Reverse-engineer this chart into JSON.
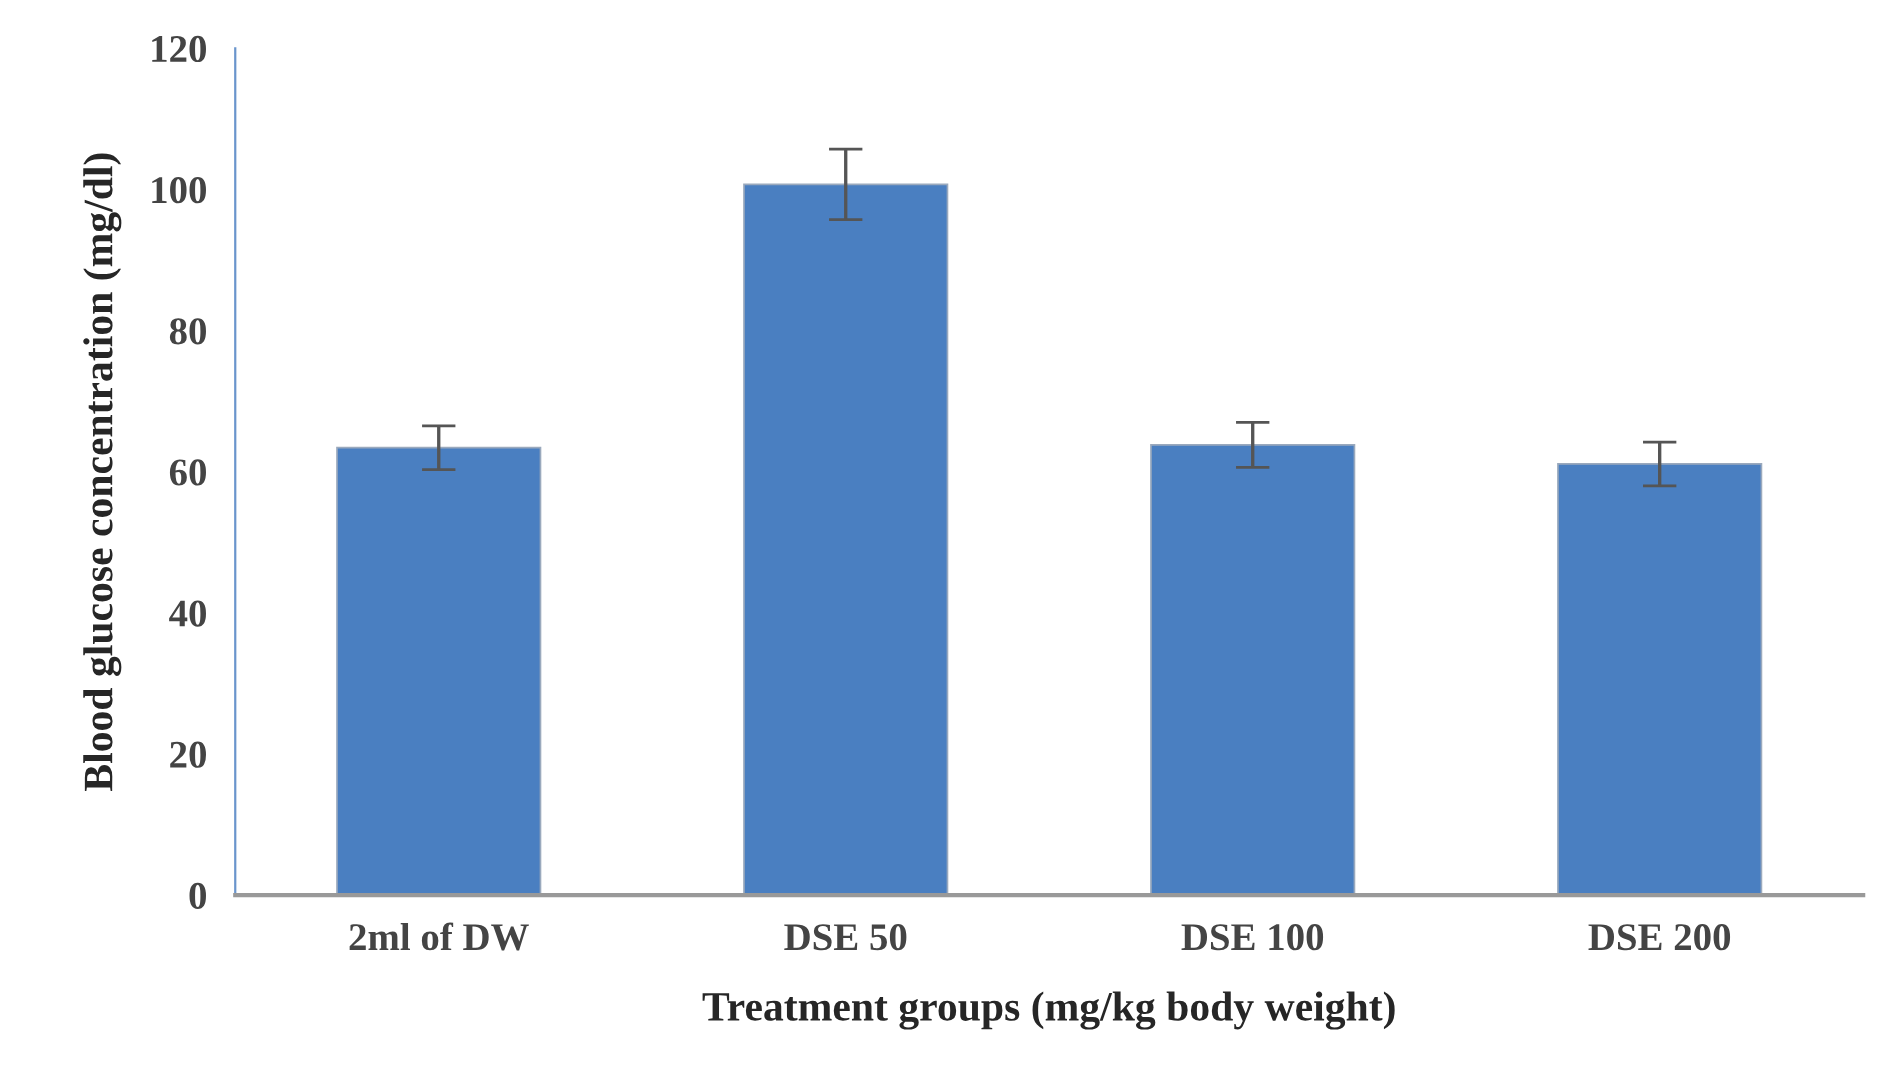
{
  "chart_data": {
    "type": "bar",
    "xlabel": "Treatment groups (mg/kg body weight)",
    "ylabel": "Blood glucose concentration (mg/dl)",
    "categories": [
      "2ml of DW",
      "DSE 50",
      "DSE 100",
      "DSE 200"
    ],
    "values": [
      63.4,
      100.7,
      63.8,
      61.1
    ],
    "errors": [
      3.1,
      5.0,
      3.2,
      3.1
    ],
    "color": "#4a7fc1",
    "ylim": [
      0,
      120
    ],
    "yticks": [
      0,
      20,
      40,
      60,
      80,
      100,
      120
    ],
    "grid": false
  }
}
